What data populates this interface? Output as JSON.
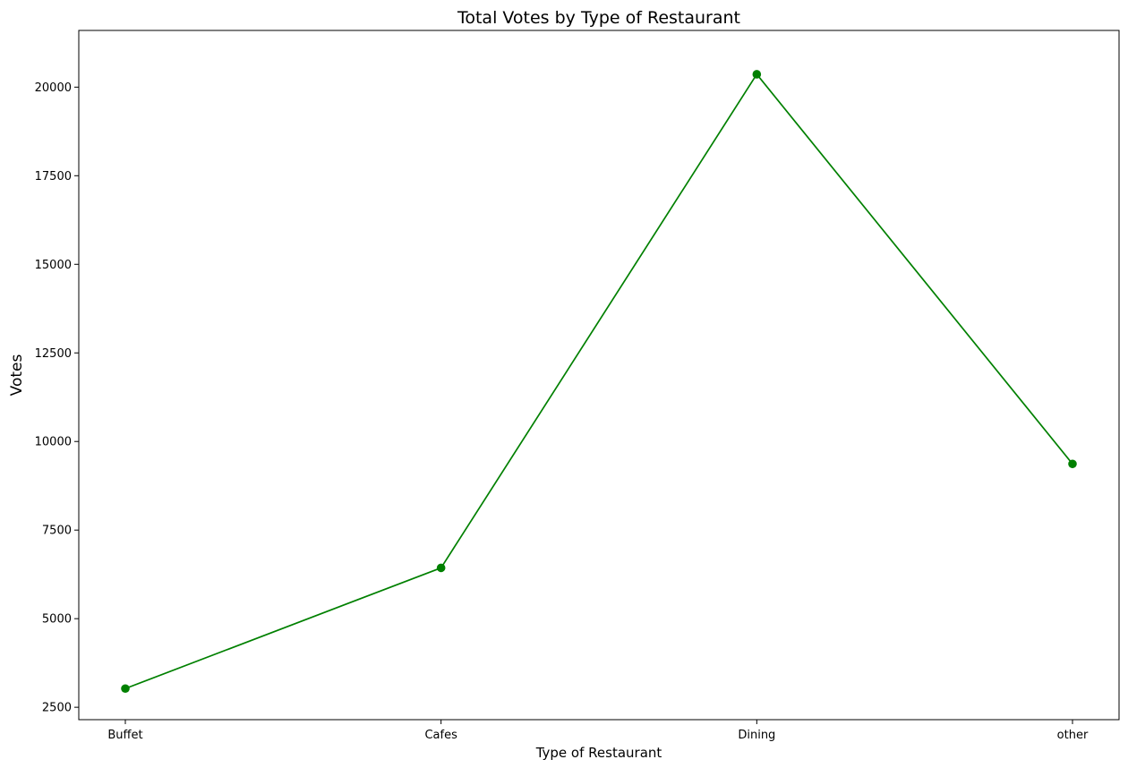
{
  "chart_data": {
    "type": "line",
    "title": "Total Votes by Type of Restaurant",
    "xlabel": "Type of Restaurant",
    "ylabel": "Votes",
    "categories": [
      "Buffet",
      "Cafes",
      "Dining",
      "other"
    ],
    "series": [
      {
        "values": [
          3028,
          6434,
          20363,
          9367
        ]
      }
    ],
    "ylim": [
      2150,
      21600
    ],
    "yticks": [
      2500,
      5000,
      7500,
      10000,
      12500,
      15000,
      17500,
      20000
    ],
    "grid": false,
    "legend": false,
    "marker": "circle"
  },
  "colors": {
    "line": "#008000",
    "marker": "#008000",
    "title": "#00008b",
    "axes": "#000000"
  }
}
